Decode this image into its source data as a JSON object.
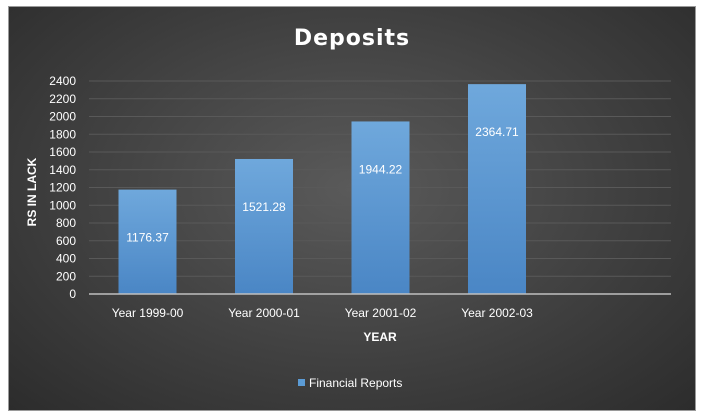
{
  "chart_data": {
    "type": "bar",
    "title": "Deposits",
    "xlabel": "YEAR",
    "ylabel": "RS IN LACK",
    "categories": [
      "Year 1999-00",
      "Year 2000-01",
      "Year 2001-02",
      "Year 2002-03"
    ],
    "series": [
      {
        "name": "Financial Reports",
        "values": [
          1176.37,
          1521.28,
          1944.22,
          2364.71
        ]
      }
    ],
    "data_labels": [
      "1176.37",
      "1521.28",
      "1944.22",
      "2364.71"
    ],
    "ylim": [
      0,
      2400
    ],
    "yticks": [
      0,
      200,
      400,
      600,
      800,
      1000,
      1200,
      1400,
      1600,
      1800,
      2000,
      2200,
      2400
    ],
    "grid": true,
    "legend_position": "bottom",
    "colors": {
      "bar": "#5b9bd5",
      "background": "#404040",
      "text": "#ffffff",
      "grid": "#595959"
    }
  }
}
